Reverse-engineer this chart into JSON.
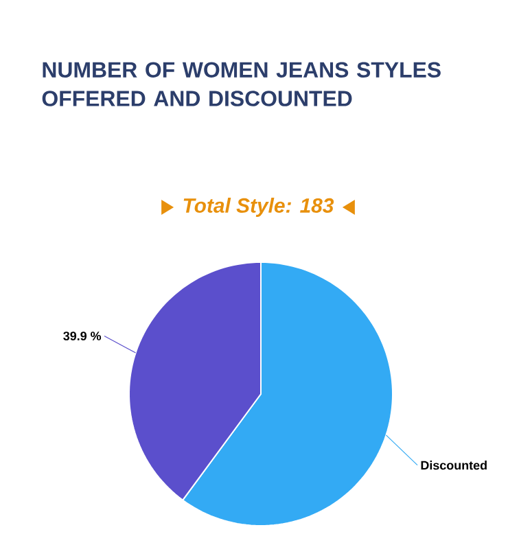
{
  "chart_data": {
    "type": "pie",
    "title": "NUMBER OF WOMEN JEANS STYLES OFFERED AND DISCOUNTED",
    "subtitle": "Total Style: 183",
    "categories": [
      "Discounted",
      null
    ],
    "values": [
      60.1,
      39.9
    ],
    "colors": [
      "#33aaf4",
      "#5b4fcc"
    ],
    "value_labels": [
      null,
      "39.9 %"
    ]
  }
}
